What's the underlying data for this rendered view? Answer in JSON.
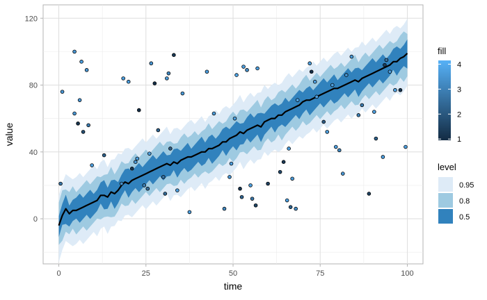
{
  "chart_data": {
    "type": "area",
    "xlabel": "time",
    "ylabel": "value",
    "xlim": [
      -4.5,
      104.5
    ],
    "ylim": [
      -27,
      128
    ],
    "x_ticks": [
      0,
      25,
      50,
      75,
      100
    ],
    "y_ticks": [
      0,
      40,
      80,
      120
    ],
    "x_tick_labels": [
      "0",
      "25",
      "50",
      "75",
      "100"
    ],
    "y_tick_labels": [
      "0",
      "40",
      "80",
      "120"
    ],
    "grid": true,
    "interval_half_widths": [
      {
        "level": "0.95",
        "half_width": 20,
        "color": "#deebf7"
      },
      {
        "level": "0.8",
        "half_width": 13,
        "color": "#9ecae1"
      },
      {
        "level": "0.5",
        "half_width": 7,
        "color": "#3182bd"
      }
    ],
    "median": {
      "color": "#000000",
      "x": [
        0,
        1,
        2,
        3,
        4,
        5,
        6,
        7,
        8,
        9,
        10,
        11,
        12,
        13,
        14,
        15,
        16,
        17,
        18,
        19,
        20,
        21,
        22,
        23,
        24,
        25,
        26,
        27,
        28,
        29,
        30,
        31,
        32,
        33,
        34,
        35,
        36,
        37,
        38,
        39,
        40,
        41,
        42,
        43,
        44,
        45,
        46,
        47,
        48,
        49,
        50,
        51,
        52,
        53,
        54,
        55,
        56,
        57,
        58,
        59,
        60,
        61,
        62,
        63,
        64,
        65,
        66,
        67,
        68,
        69,
        70,
        71,
        72,
        73,
        74,
        75,
        76,
        77,
        78,
        79,
        80,
        81,
        82,
        83,
        84,
        85,
        86,
        87,
        88,
        89,
        90,
        91,
        92,
        93,
        94,
        95,
        96,
        97,
        98,
        99,
        100
      ],
      "y": [
        -4,
        2,
        6,
        3,
        5,
        5,
        6,
        7,
        8,
        9,
        10,
        11,
        14,
        14,
        13,
        16,
        15,
        17,
        20,
        22,
        21,
        23,
        24,
        25,
        26,
        27,
        28,
        29,
        30,
        31,
        32,
        33,
        32,
        34,
        33,
        35,
        36,
        37,
        37,
        38,
        39,
        40,
        40,
        42,
        42,
        43,
        44,
        46,
        46,
        48,
        49,
        50,
        52,
        51,
        53,
        54,
        55,
        56,
        55,
        58,
        59,
        60,
        60,
        62,
        62,
        64,
        65,
        66,
        67,
        68,
        70,
        71,
        71,
        72,
        73,
        74,
        75,
        76,
        77,
        78,
        78,
        79,
        80,
        81,
        82,
        83,
        82,
        84,
        85,
        86,
        87,
        88,
        89,
        90,
        91,
        92,
        94,
        94,
        96,
        97,
        99
      ]
    },
    "points": {
      "fill_scale": {
        "name": "fill",
        "min": 1,
        "max": 4,
        "ticks": [
          1,
          2,
          3,
          4
        ],
        "tick_labels": [
          "1",
          "2",
          "3",
          "4"
        ],
        "low_color": "#132b43",
        "high_color": "#56b1f7"
      },
      "x": [
        0.5,
        1,
        4.5,
        4.5,
        5.5,
        6,
        6.5,
        7,
        8,
        8.5,
        9.5,
        13,
        18,
        18.5,
        20,
        21,
        22,
        22.5,
        23,
        24.5,
        25.5,
        26,
        26.5,
        27.5,
        28.5,
        30,
        30.5,
        31,
        31.5,
        32,
        33,
        34,
        35.5,
        37.5,
        42.5,
        44.5,
        47.5,
        49,
        49.5,
        50.5,
        51,
        52,
        52.5,
        53,
        54,
        55,
        55.5,
        56.5,
        57,
        60,
        63.5,
        64.5,
        65.5,
        66,
        66.5,
        67,
        68,
        68.5,
        72,
        72.5,
        73.5,
        74,
        76,
        77,
        78.5,
        79.5,
        80.5,
        81.5,
        82.5,
        84,
        86,
        87,
        89,
        90.5,
        91,
        93,
        93.5,
        94,
        95,
        96.5,
        98,
        99.5
      ],
      "y": [
        21,
        76,
        63,
        100,
        57,
        71,
        94,
        52,
        89,
        56,
        32,
        38,
        21,
        84,
        82,
        30,
        34,
        36,
        65,
        20,
        18,
        39,
        93,
        81,
        53,
        25,
        15,
        84,
        87,
        42,
        98,
        17,
        75,
        4,
        88,
        63,
        6,
        25,
        33,
        60,
        86,
        18,
        13,
        91,
        89,
        20,
        12,
        8,
        90,
        21,
        28,
        34,
        11,
        42,
        7,
        24,
        6,
        71,
        93,
        88,
        82,
        73,
        58,
        52,
        80,
        43,
        41,
        27,
        86,
        97,
        62,
        68,
        15,
        64,
        48,
        37,
        92,
        95,
        88,
        77,
        77,
        43
      ],
      "fill": [
        2.7,
        3.4,
        3.4,
        3.4,
        1.2,
        3.4,
        3.6,
        1.8,
        3.4,
        2.8,
        3.6,
        2.2,
        3.2,
        3.6,
        3.6,
        1.2,
        3.4,
        3.6,
        1.1,
        2.9,
        2.5,
        3.6,
        3.4,
        1.1,
        2.3,
        2.6,
        2.4,
        3.5,
        3.1,
        2.1,
        1.3,
        3.6,
        3.5,
        3.6,
        3.6,
        3.5,
        3.1,
        3.4,
        3.6,
        3.6,
        3.7,
        1.2,
        2.3,
        3.6,
        3.2,
        3.6,
        2.7,
        1.6,
        3.6,
        1.5,
        1.7,
        1.3,
        3.6,
        3.6,
        2.2,
        3.5,
        3.2,
        3.7,
        3.6,
        1.1,
        3.6,
        3.6,
        2.1,
        3.6,
        3.6,
        3.6,
        3.1,
        3.4,
        3.3,
        3.5,
        2.9,
        2.8,
        1.5,
        3.6,
        2.2,
        3.6,
        1.4,
        2.6,
        3.6,
        3.7,
        1.2,
        3.6
      ]
    }
  },
  "legend": {
    "fill_title": "fill",
    "level_title": "level",
    "level_items": [
      {
        "label": "0.95",
        "color": "#deebf7"
      },
      {
        "label": "0.8",
        "color": "#9ecae1"
      },
      {
        "label": "0.5",
        "color": "#3182bd"
      }
    ]
  }
}
